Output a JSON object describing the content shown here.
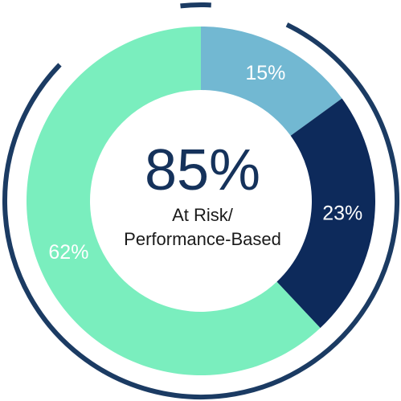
{
  "chart_data": {
    "type": "pie",
    "categories": [
      "15%",
      "23%",
      "62%"
    ],
    "values": [
      15,
      23,
      62
    ],
    "labels": [
      "15%",
      "23%",
      "62%"
    ],
    "colors": [
      "#72b8d2",
      "#0d2a5b",
      "#7aeebe"
    ],
    "center": {
      "value": "85%",
      "caption_line1": "At Risk/",
      "caption_line2": "Performance-Based"
    },
    "outer_ring_color": "#1b3b63"
  }
}
